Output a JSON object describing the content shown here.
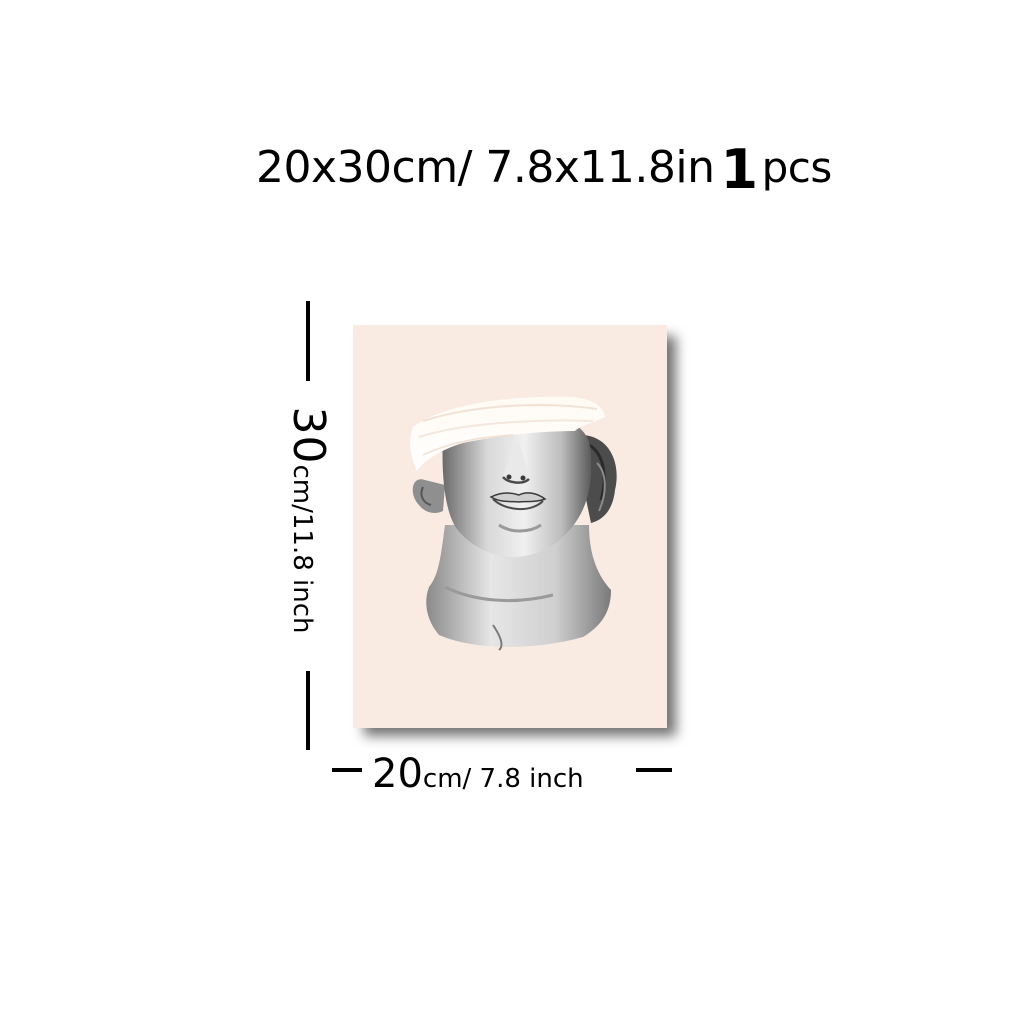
{
  "headline": {
    "size_text": "20x30cm/ 7.8x11.8in",
    "quantity_number": "1",
    "quantity_unit": "pcs"
  },
  "height_dimension": {
    "value": "30",
    "unit_text": "cm/11.8 inch"
  },
  "width_dimension": {
    "value": "20",
    "unit_text": "cm/ 7.8 inch"
  },
  "poster": {
    "background_color": "#f9ebe1",
    "subject": "marble-bust-artwork"
  }
}
